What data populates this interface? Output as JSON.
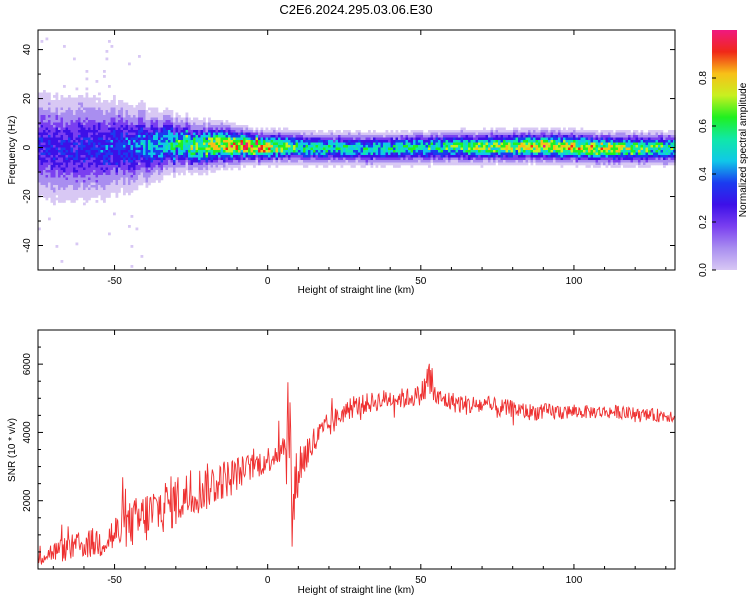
{
  "title": "C2E6.2024.295.03.06.E30",
  "colors": {
    "snr_line": "#ee3030",
    "axis": "#000000",
    "colormap": [
      "#d8c8f4",
      "#a98ef0",
      "#7a3ff0",
      "#3d10e8",
      "#1a3cf0",
      "#10c8e8",
      "#10e8a8",
      "#20f020",
      "#c8f020",
      "#f8c018",
      "#f02818",
      "#f01880"
    ]
  },
  "chart_data": [
    {
      "type": "heatmap",
      "title": "C2E6.2024.295.03.06.E30",
      "xlabel": "Height of straight line (km)",
      "ylabel": "Frequency (Hz)",
      "xlim": [
        -75,
        133
      ],
      "ylim": [
        -50,
        48
      ],
      "xticks": [
        -50,
        0,
        50,
        100
      ],
      "yticks": [
        -40,
        -20,
        0,
        20,
        40
      ],
      "colorbar": {
        "label": "Normalized spectral amplitude",
        "range": [
          0,
          1
        ],
        "ticks": [
          "0.0",
          "0.2",
          "0.4",
          "0.6",
          "0.8"
        ]
      },
      "band_profile": [
        {
          "x": -75,
          "center_hz": 1,
          "halfwidth_hz": 10,
          "amplitude": 0.3
        },
        {
          "x": -60,
          "center_hz": 0,
          "halfwidth_hz": 10,
          "amplitude": 0.32
        },
        {
          "x": -45,
          "center_hz": 1,
          "halfwidth_hz": 8,
          "amplitude": 0.38
        },
        {
          "x": -30,
          "center_hz": 2,
          "halfwidth_hz": 5,
          "amplitude": 0.55
        },
        {
          "x": -15,
          "center_hz": 1.5,
          "halfwidth_hz": 4,
          "amplitude": 0.75
        },
        {
          "x": -5,
          "center_hz": 1,
          "halfwidth_hz": 3,
          "amplitude": 0.85
        },
        {
          "x": 10,
          "center_hz": 0.5,
          "halfwidth_hz": 3,
          "amplitude": 0.55
        },
        {
          "x": 30,
          "center_hz": 0,
          "halfwidth_hz": 3,
          "amplitude": 0.5
        },
        {
          "x": 55,
          "center_hz": 0.5,
          "halfwidth_hz": 3,
          "amplitude": 0.55
        },
        {
          "x": 90,
          "center_hz": 1,
          "halfwidth_hz": 3,
          "amplitude": 0.75
        },
        {
          "x": 110,
          "center_hz": 0,
          "halfwidth_hz": 3,
          "amplitude": 0.7
        },
        {
          "x": 133,
          "center_hz": 0,
          "halfwidth_hz": 3,
          "amplitude": 0.55
        }
      ]
    },
    {
      "type": "line",
      "xlabel": "Height of straight line (km)",
      "ylabel": "SNR (10 * v/v)",
      "xlim": [
        -75,
        133
      ],
      "ylim": [
        0,
        7000
      ],
      "xticks": [
        -50,
        0,
        50,
        100
      ],
      "yticks": [
        2000,
        4000,
        6000
      ],
      "series": [
        {
          "x": [
            -75,
            -70,
            -65,
            -60,
            -55,
            -50,
            -45,
            -40,
            -35,
            -30,
            -25,
            -20,
            -15,
            -10,
            -5,
            0,
            5,
            7,
            8,
            10,
            15,
            20,
            25,
            30,
            35,
            40,
            45,
            50,
            53,
            55,
            60,
            65,
            70,
            75,
            80,
            85,
            90,
            95,
            100,
            105,
            110,
            115,
            120,
            125,
            133
          ],
          "y": [
            400,
            500,
            600,
            700,
            800,
            1000,
            1300,
            1500,
            1800,
            2000,
            2200,
            2400,
            2600,
            2800,
            3000,
            3200,
            3600,
            4400,
            1500,
            3000,
            3700,
            4200,
            4600,
            4800,
            4900,
            5000,
            5000,
            5100,
            5600,
            5000,
            4900,
            4800,
            4800,
            4700,
            4700,
            4600,
            4600,
            4600,
            4600,
            4600,
            4600,
            4600,
            4500,
            4500,
            4500
          ],
          "noise": [
            300,
            300,
            400,
            400,
            500,
            600,
            700,
            800,
            800,
            800,
            700,
            700,
            600,
            500,
            400,
            400,
            500,
            2500,
            1500,
            700,
            500,
            400,
            300,
            300,
            300,
            300,
            300,
            300,
            800,
            300,
            300,
            300,
            300,
            300,
            250,
            250,
            250,
            250,
            200,
            200,
            200,
            200,
            200,
            200,
            200
          ]
        }
      ]
    }
  ]
}
